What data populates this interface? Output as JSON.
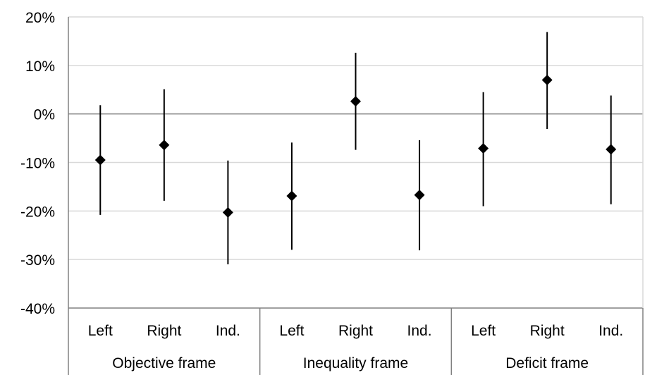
{
  "chart_data": {
    "type": "scatter",
    "subtype": "point-estimate-with-error-bars",
    "title": "",
    "xlabel": "",
    "ylabel": "",
    "ylim": [
      -40,
      20
    ],
    "y_ticks": [
      20,
      10,
      0,
      -10,
      -20,
      -30,
      -40
    ],
    "y_tick_labels": [
      "20%",
      "10%",
      "0%",
      "-10%",
      "-20%",
      "-30%",
      "-40%"
    ],
    "grid": true,
    "legend": "none",
    "groups": [
      {
        "name": "Objective frame",
        "points": [
          {
            "category": "Left",
            "value": -9.5,
            "lower": -20.8,
            "upper": 1.8
          },
          {
            "category": "Right",
            "value": -6.4,
            "lower": -17.9,
            "upper": 5.1
          },
          {
            "category": "Ind.",
            "value": -20.3,
            "lower": -31.0,
            "upper": -9.6
          }
        ]
      },
      {
        "name": "Inequality frame",
        "points": [
          {
            "category": "Left",
            "value": -16.9,
            "lower": -28.0,
            "upper": -5.9
          },
          {
            "category": "Right",
            "value": 2.6,
            "lower": -7.4,
            "upper": 12.6
          },
          {
            "category": "Ind.",
            "value": -16.7,
            "lower": -28.1,
            "upper": -5.4
          }
        ]
      },
      {
        "name": "Deficit frame",
        "points": [
          {
            "category": "Left",
            "value": -7.1,
            "lower": -19.0,
            "upper": 4.5
          },
          {
            "category": "Right",
            "value": 7.0,
            "lower": -3.1,
            "upper": 16.9
          },
          {
            "category": "Ind.",
            "value": -7.3,
            "lower": -18.6,
            "upper": 3.8
          }
        ]
      }
    ],
    "colors": {
      "marker": "#000000",
      "grid": "#d9d9d9",
      "axis": "#808080",
      "zero_line": "#808080"
    }
  }
}
